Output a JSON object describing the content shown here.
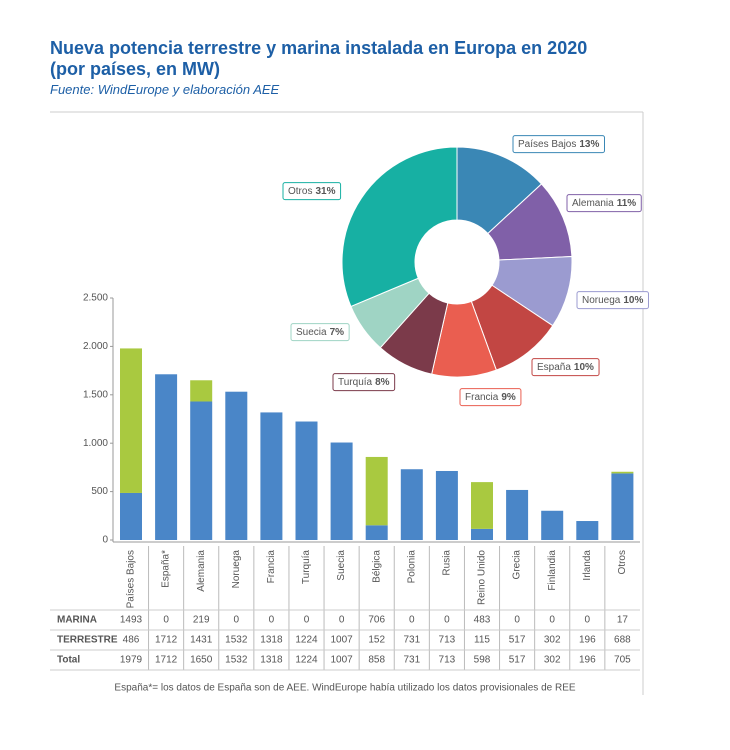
{
  "chart_data": [
    {
      "type": "bar",
      "title": "Nueva potencia terrestre y marina instalada en Europa en 2020 (por países, en MW)",
      "subtitle": "Fuente: WindEurope y elaboración AEE",
      "categories": [
        "Países Bajos",
        "España*",
        "Alemania",
        "Noruega",
        "Francia",
        "Turquía",
        "Suecia",
        "Bélgica",
        "Polonia",
        "Rusia",
        "Reino Unido",
        "Grecia",
        "Finlandia",
        "Irlanda",
        "Otros"
      ],
      "series": [
        {
          "name": "MARINA",
          "color": "#a9c940",
          "values": [
            1493,
            0,
            219,
            0,
            0,
            0,
            0,
            706,
            0,
            0,
            483,
            0,
            0,
            0,
            17
          ]
        },
        {
          "name": "TERRESTRE",
          "color": "#4a86c8",
          "values": [
            486,
            1712,
            1431,
            1532,
            1318,
            1224,
            1007,
            152,
            731,
            713,
            115,
            517,
            302,
            196,
            688
          ]
        }
      ],
      "total_label": "Total",
      "totals": [
        1979,
        1712,
        1650,
        1532,
        1318,
        1224,
        1007,
        858,
        731,
        713,
        598,
        517,
        302,
        196,
        705
      ],
      "ylim": [
        0,
        2500
      ],
      "yticks": [
        0,
        500,
        {
          "value": 1000,
          "label": "1.000"
        },
        {
          "value": 1500,
          "label": "1.500"
        },
        {
          "value": 2000,
          "label": "2.000"
        },
        {
          "value": 2500,
          "label": "2.500"
        }
      ],
      "stacked": true,
      "footnote": "España*= los datos de España son de AEE. WindEurope había utilizado los datos provisionales de REE"
    },
    {
      "type": "pie",
      "donut": true,
      "categories": [
        "Países Bajos",
        "Alemania",
        "Noruega",
        "España",
        "Francia",
        "Turquía",
        "Suecia",
        "Otros"
      ],
      "values": [
        13,
        11,
        10,
        10,
        9,
        8,
        7,
        31
      ],
      "value_labels": [
        "13%",
        "11%",
        "10%",
        "10%",
        "9%",
        "8%",
        "7%",
        "31%"
      ],
      "colors": [
        "#3a87b5",
        "#8060a8",
        "#9b9bd0",
        "#c24643",
        "#ea5e50",
        "#7b3a4a",
        "#9fd4c4",
        "#17b0a3"
      ]
    }
  ]
}
